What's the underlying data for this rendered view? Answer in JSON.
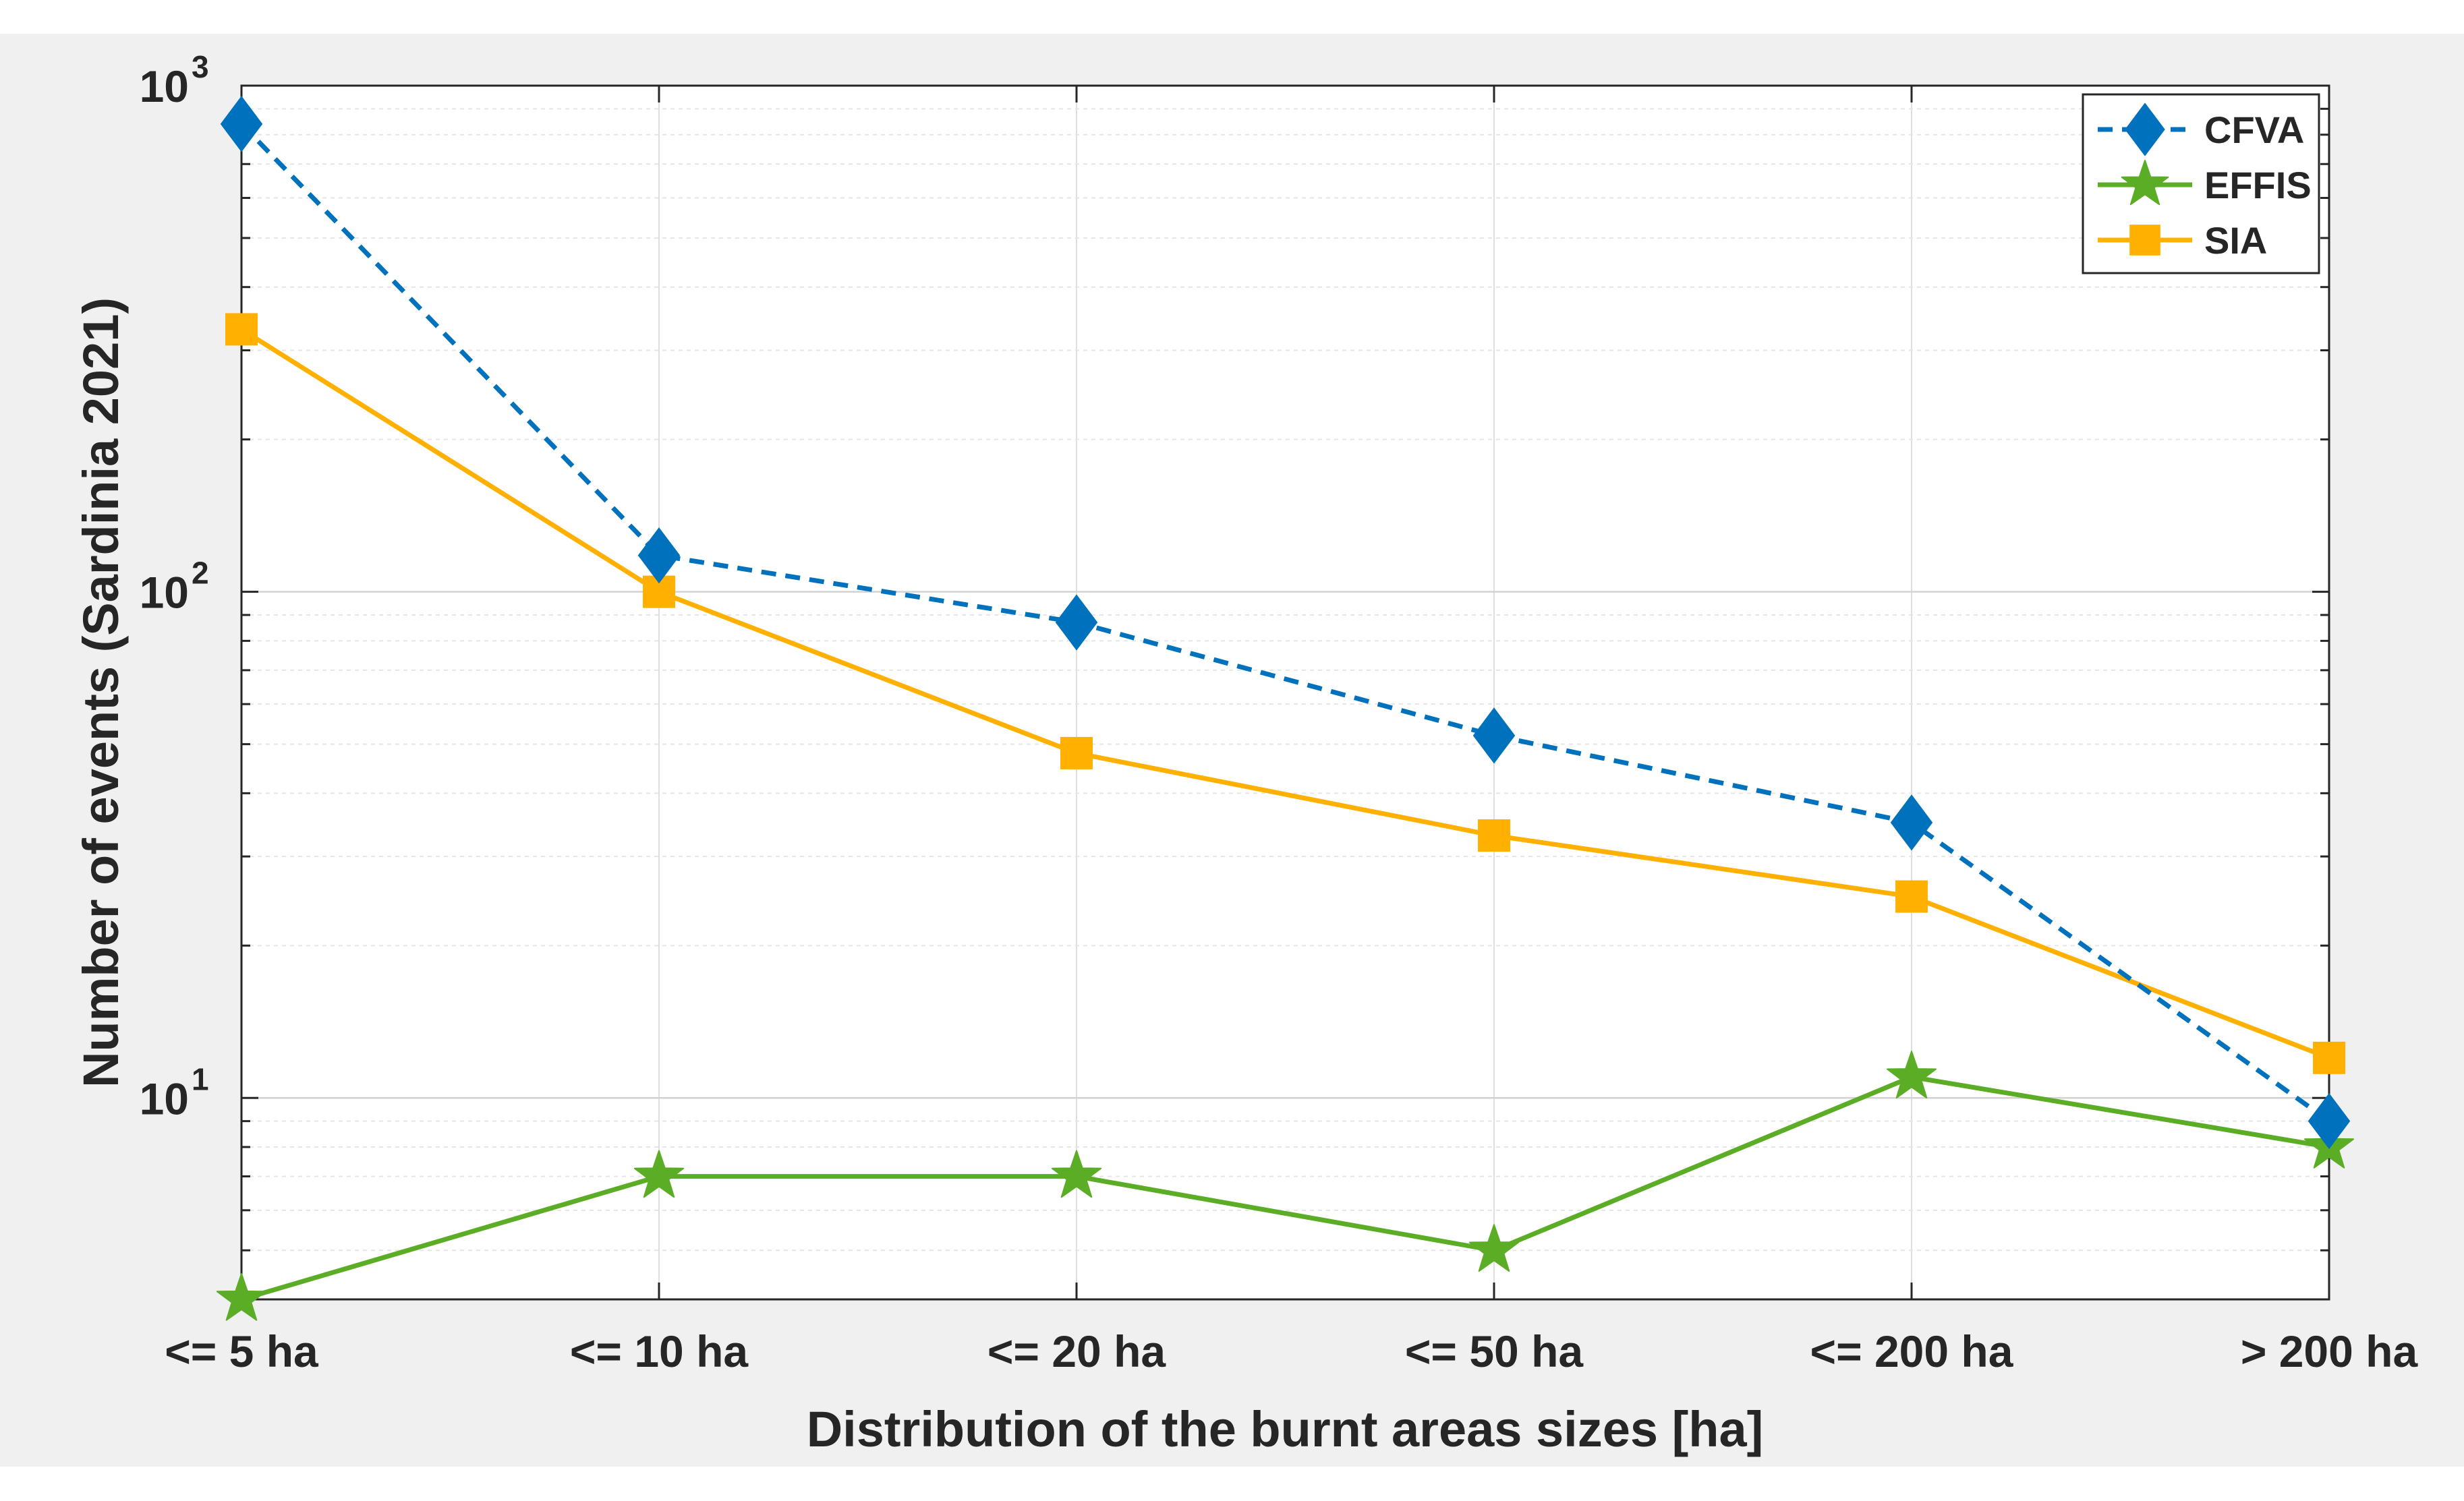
{
  "chart_data": {
    "type": "line",
    "categories": [
      "<= 5 ha",
      "<= 10 ha",
      "<= 20 ha",
      "<= 50 ha",
      "<= 200 ha",
      "> 200 ha"
    ],
    "series": [
      {
        "name": "CFVA",
        "values": [
          840,
          118,
          87,
          52,
          35,
          9
        ],
        "color": "#0072BD",
        "line_style": "dashed",
        "marker": "diamond"
      },
      {
        "name": "EFFIS",
        "values": [
          4,
          7,
          7,
          5,
          11,
          8
        ],
        "color": "#5AAD25",
        "line_style": "solid",
        "marker": "star"
      },
      {
        "name": "SIA",
        "values": [
          330,
          100,
          48,
          33,
          25,
          12
        ],
        "color": "#FFB000",
        "line_style": "solid",
        "marker": "square"
      }
    ],
    "xlabel": "Distribution of the burnt areas sizes [ha]",
    "ylabel": "Number of events (Sardinia 2021)",
    "yscale": "log",
    "ylim": [
      4,
      1000
    ],
    "yticks": [
      10,
      100,
      1000
    ],
    "ytick_labels": [
      {
        "base": "10",
        "exp": "1"
      },
      {
        "base": "10",
        "exp": "2"
      },
      {
        "base": "10",
        "exp": "3"
      }
    ],
    "grid": true,
    "legend_position": "top-right",
    "background": "#F0F0F0",
    "plot_background": "#FFFFFF"
  }
}
